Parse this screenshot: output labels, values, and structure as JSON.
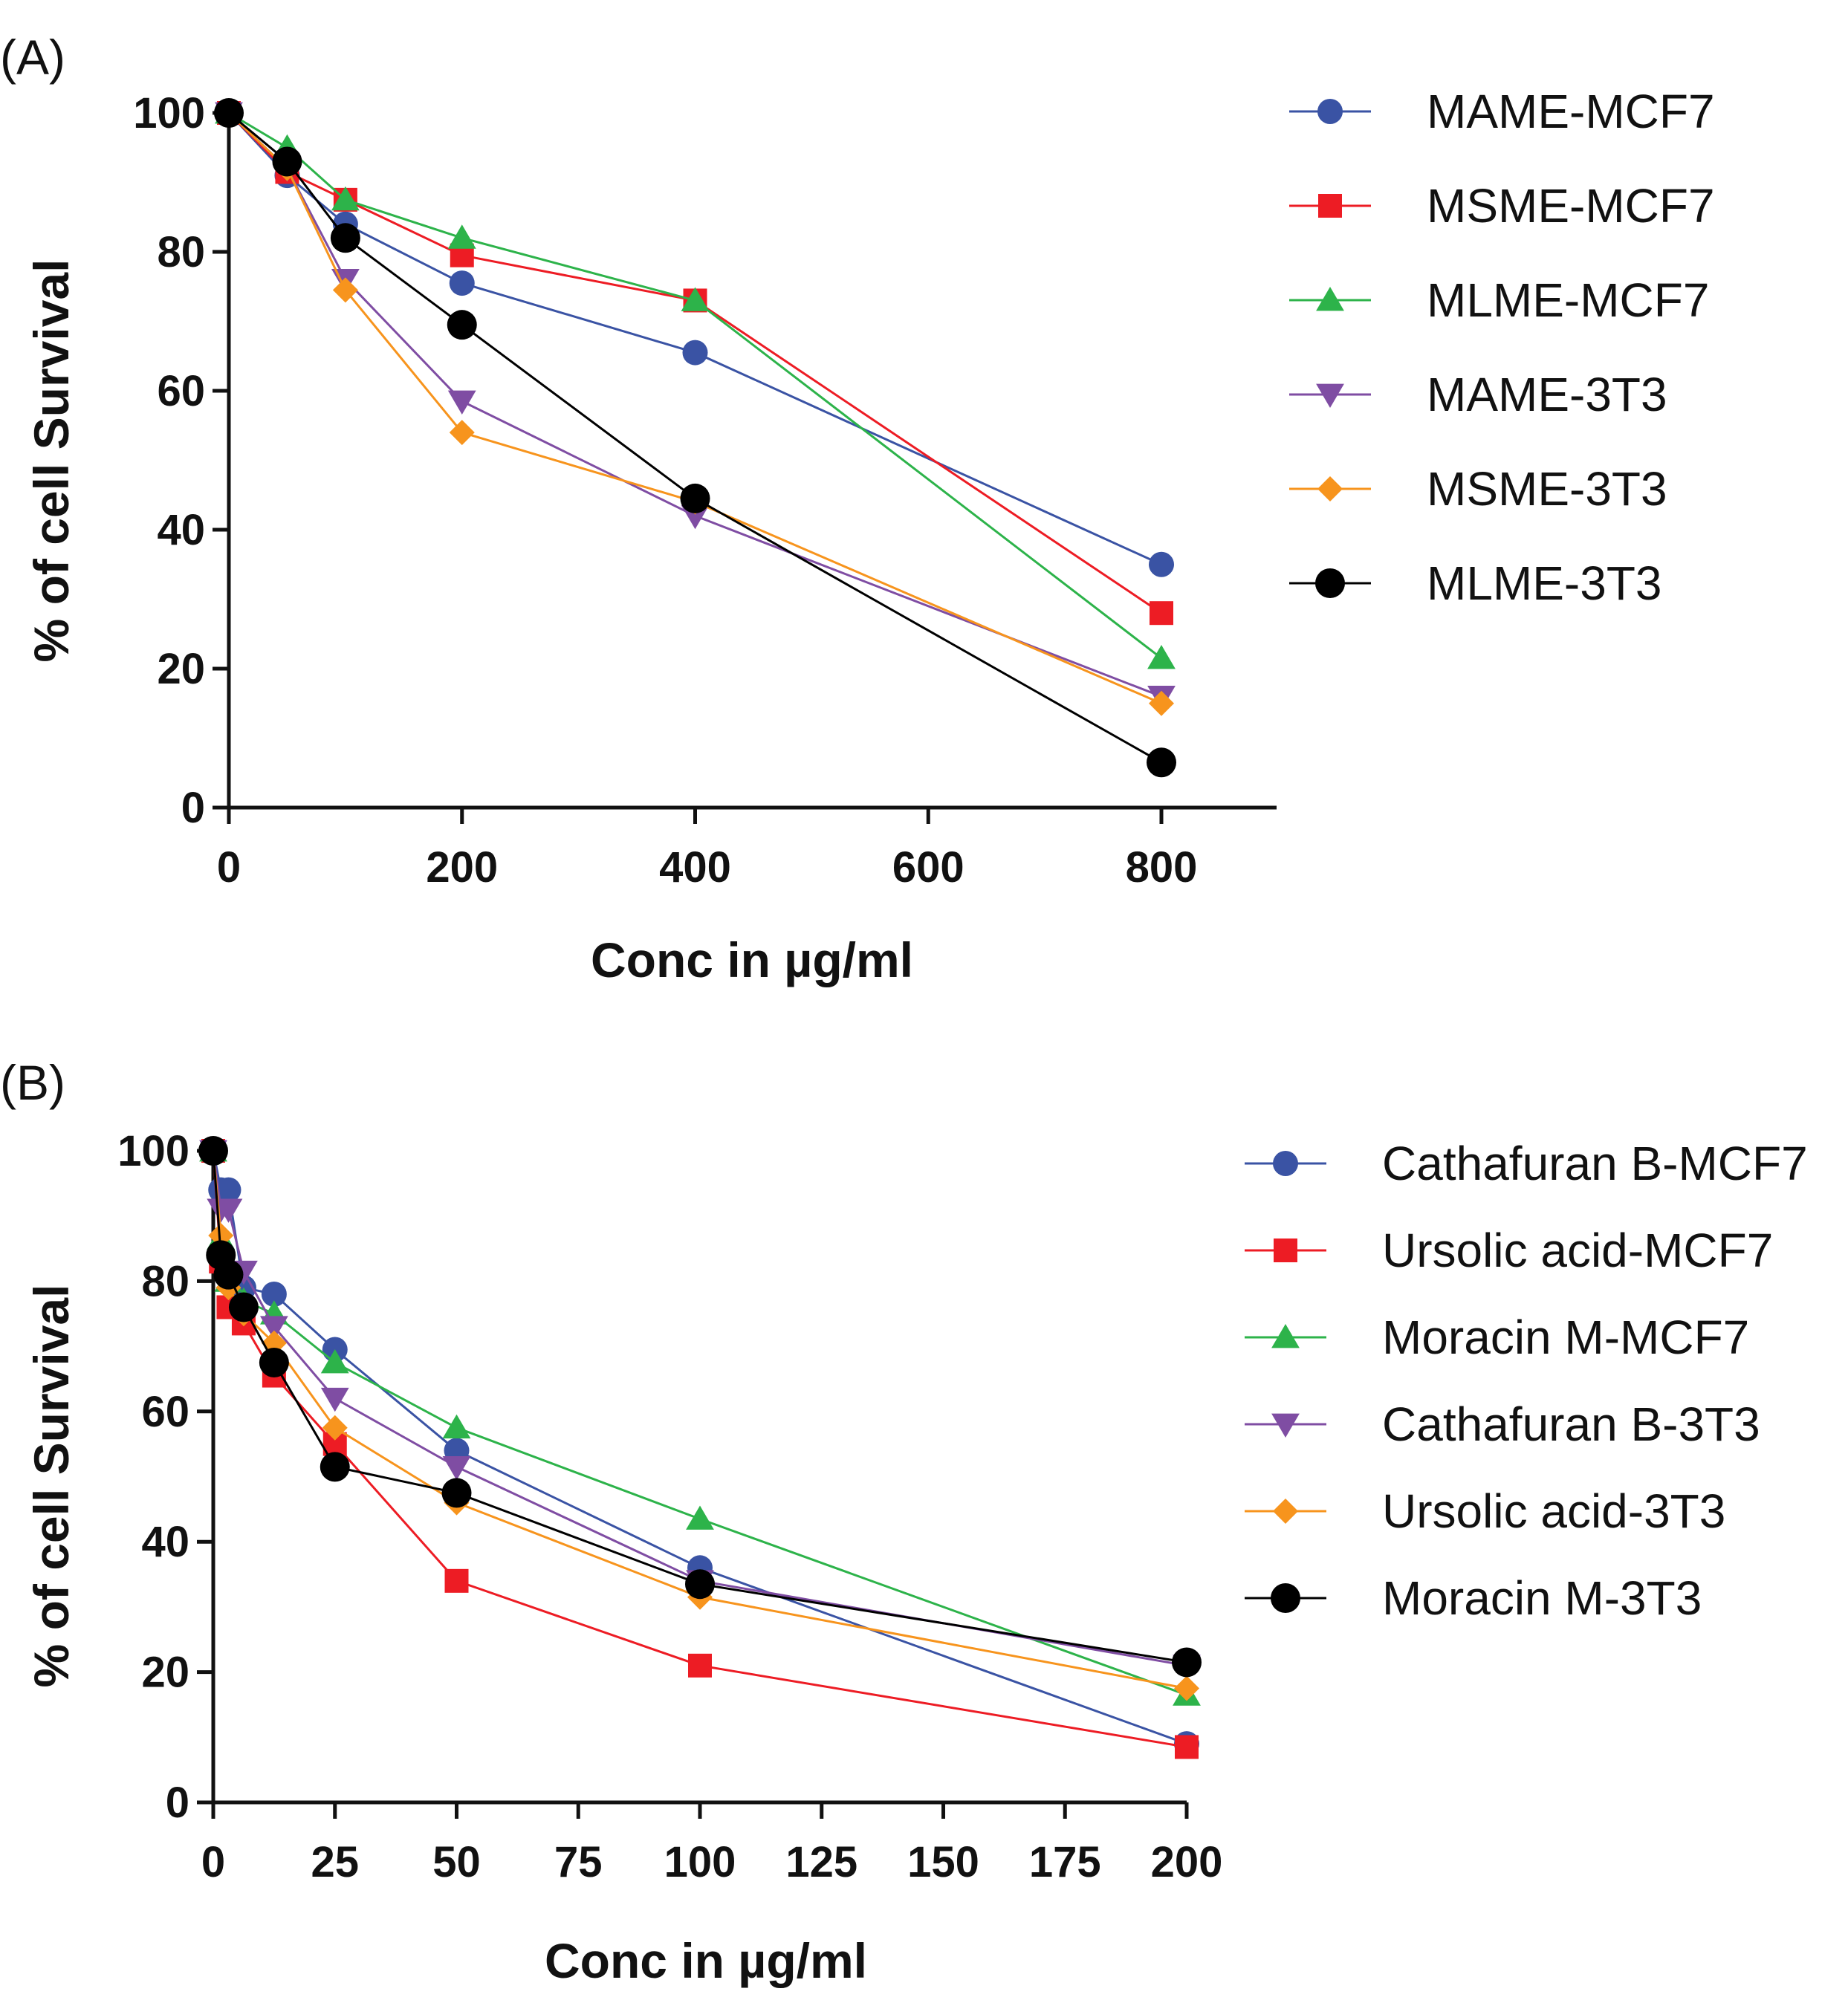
{
  "chart_data": [
    {
      "type": "line",
      "panel_label": "(A)",
      "title": "",
      "xlabel": "Conc in µg/ml",
      "ylabel": "% of cell Survival",
      "xlim": [
        0,
        900
      ],
      "ylim": [
        0,
        100
      ],
      "xticks": [
        0,
        200,
        400,
        600,
        800
      ],
      "yticks": [
        0,
        20,
        40,
        60,
        80,
        100
      ],
      "x": [
        0,
        50,
        100,
        200,
        400,
        800
      ],
      "legend_position": "right",
      "series": [
        {
          "name": "MAME-MCF7",
          "color": "#3A53A4",
          "marker": "circle",
          "values": [
            100,
            91,
            84,
            75.5,
            65.5,
            35
          ]
        },
        {
          "name": "MSME-MCF7",
          "color": "#ED1C24",
          "marker": "square",
          "values": [
            100,
            91.5,
            87.5,
            79.5,
            73,
            28
          ]
        },
        {
          "name": "MLME-MCF7",
          "color": "#2DB34A",
          "marker": "triangle-up",
          "values": [
            100,
            95,
            87.5,
            82,
            73,
            21.5
          ]
        },
        {
          "name": "MAME-3T3",
          "color": "#7F4DA3",
          "marker": "triangle-down",
          "values": [
            100,
            92,
            76,
            58.5,
            42,
            16
          ]
        },
        {
          "name": "MSME-3T3",
          "color": "#F7941D",
          "marker": "diamond",
          "values": [
            100,
            92,
            74.5,
            54,
            44,
            15
          ]
        },
        {
          "name": "MLME-3T3",
          "color": "#000000",
          "marker": "circle-large",
          "values": [
            100,
            93,
            82,
            69.5,
            44.5,
            6.5
          ]
        }
      ]
    },
    {
      "type": "line",
      "panel_label": "(B)",
      "title": "",
      "xlabel": "Conc in µg/ml",
      "ylabel": "% of cell Survival",
      "xlim": [
        0,
        200
      ],
      "ylim": [
        0,
        100
      ],
      "xticks": [
        0,
        25,
        50,
        75,
        100,
        125,
        150,
        175,
        200
      ],
      "yticks": [
        0,
        20,
        40,
        60,
        80,
        100
      ],
      "x": [
        0,
        1.5625,
        3.125,
        6.25,
        12.5,
        25,
        50,
        100,
        200
      ],
      "legend_position": "right",
      "series": [
        {
          "name": "Cathafuran B-MCF7",
          "color": "#3A53A4",
          "marker": "circle",
          "values": [
            100,
            94,
            94,
            79,
            78,
            69.5,
            54,
            36,
            9
          ]
        },
        {
          "name": "Ursolic acid-MCF7",
          "color": "#ED1C24",
          "marker": "square",
          "values": [
            100,
            83,
            76,
            73.5,
            65.5,
            55,
            34,
            21,
            8.5
          ]
        },
        {
          "name": "Moracin M-MCF7",
          "color": "#2DB34A",
          "marker": "triangle-up",
          "values": [
            100,
            86.5,
            80,
            77,
            75,
            67.5,
            57.5,
            43.5,
            16.5
          ]
        },
        {
          "name": "Cathafuran B-3T3",
          "color": "#7F4DA3",
          "marker": "triangle-down",
          "values": [
            100,
            91,
            91,
            81.5,
            73,
            62,
            51.5,
            34,
            21
          ]
        },
        {
          "name": "Ursolic acid-3T3",
          "color": "#F7941D",
          "marker": "diamond",
          "values": [
            100,
            87,
            79,
            75,
            70.5,
            57.5,
            46,
            31.5,
            17.5
          ]
        },
        {
          "name": "Moracin M-3T3",
          "color": "#000000",
          "marker": "circle-large",
          "values": [
            100,
            84,
            81,
            76,
            67.5,
            51.5,
            47.5,
            33.5,
            21.5
          ]
        }
      ]
    }
  ]
}
